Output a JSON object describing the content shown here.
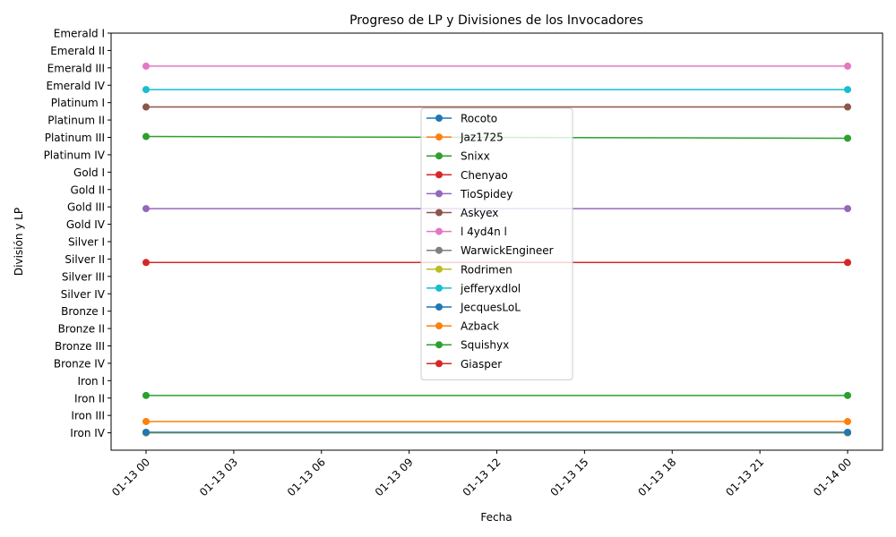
{
  "chart_data": {
    "type": "line",
    "title": "Progreso de LP y Divisiones de los Invocadores",
    "xlabel": "Fecha",
    "ylabel": "División y LP",
    "x": [
      "2024-01-13 00:00",
      "2024-01-14 00:00"
    ],
    "x_ticks": [
      "01-13 00",
      "01-13 03",
      "01-13 06",
      "01-13 09",
      "01-13 12",
      "01-13 15",
      "01-13 18",
      "01-13 21",
      "01-14 00"
    ],
    "y_ticks": [
      "Iron IV",
      "Iron III",
      "Iron II",
      "Iron I",
      "Bronze IV",
      "Bronze III",
      "Bronze II",
      "Bronze I",
      "Silver IV",
      "Silver III",
      "Silver II",
      "Silver I",
      "Gold IV",
      "Gold III",
      "Gold II",
      "Gold I",
      "Platinum IV",
      "Platinum III",
      "Platinum II",
      "Platinum I",
      "Emerald IV",
      "Emerald III",
      "Emerald II",
      "Emerald I"
    ],
    "ylim": [
      -1,
      23
    ],
    "legend_position": "center",
    "grid": false,
    "series": [
      {
        "name": "Rocoto",
        "color": "#1f77b4",
        "values": [
          0,
          0
        ]
      },
      {
        "name": "Jaz1725",
        "color": "#ff7f0e",
        "values": [
          0,
          0
        ]
      },
      {
        "name": "Snixx",
        "color": "#2ca02c",
        "values": [
          17.05,
          16.95
        ]
      },
      {
        "name": "Chenyao",
        "color": "#d62728",
        "values": [
          0,
          0
        ]
      },
      {
        "name": "TioSpidey",
        "color": "#9467bd",
        "values": [
          12.9,
          12.9
        ]
      },
      {
        "name": "Askyex",
        "color": "#8c564b",
        "values": [
          18.75,
          18.75
        ]
      },
      {
        "name": "l 4yd4n l",
        "color": "#e377c2",
        "values": [
          21.1,
          21.1
        ]
      },
      {
        "name": "WarwickEngineer",
        "color": "#7f7f7f",
        "values": [
          0,
          0
        ]
      },
      {
        "name": "Rodrimen",
        "color": "#bcbd22",
        "values": [
          0,
          0
        ]
      },
      {
        "name": "jefferyxdlol",
        "color": "#17becf",
        "values": [
          19.75,
          19.75
        ]
      },
      {
        "name": "JecquesLoL",
        "color": "#1f77b4",
        "values": [
          0.03,
          0.03
        ]
      },
      {
        "name": "Azback",
        "color": "#ff7f0e",
        "values": [
          0.65,
          0.65
        ]
      },
      {
        "name": "Squishyx",
        "color": "#2ca02c",
        "values": [
          2.15,
          2.15
        ]
      },
      {
        "name": "Giasper",
        "color": "#d62728",
        "values": [
          9.8,
          9.8
        ]
      }
    ]
  }
}
